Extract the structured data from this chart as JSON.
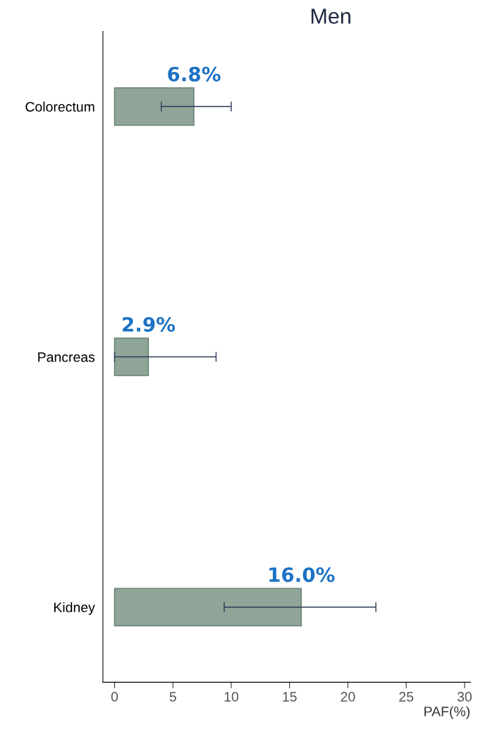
{
  "chart_data": {
    "type": "bar",
    "orientation": "horizontal",
    "title": "Men",
    "xlabel": "PAF(%)",
    "categories": [
      "Colorectum",
      "Pancreas",
      "Kidney"
    ],
    "values": [
      6.8,
      2.9,
      16.0
    ],
    "color": "#8ea597",
    "errors": [
      [
        4.0,
        10.0
      ],
      [
        0,
        8.7
      ],
      [
        9.4,
        22.4
      ]
    ],
    "value_labels": [
      "6.8%",
      "2.9%",
      "16.0%"
    ],
    "xlim": [
      -1,
      30.5
    ],
    "xticks": [
      0,
      5,
      10,
      15,
      20,
      25,
      30
    ],
    "grid": false,
    "legend": false
  }
}
